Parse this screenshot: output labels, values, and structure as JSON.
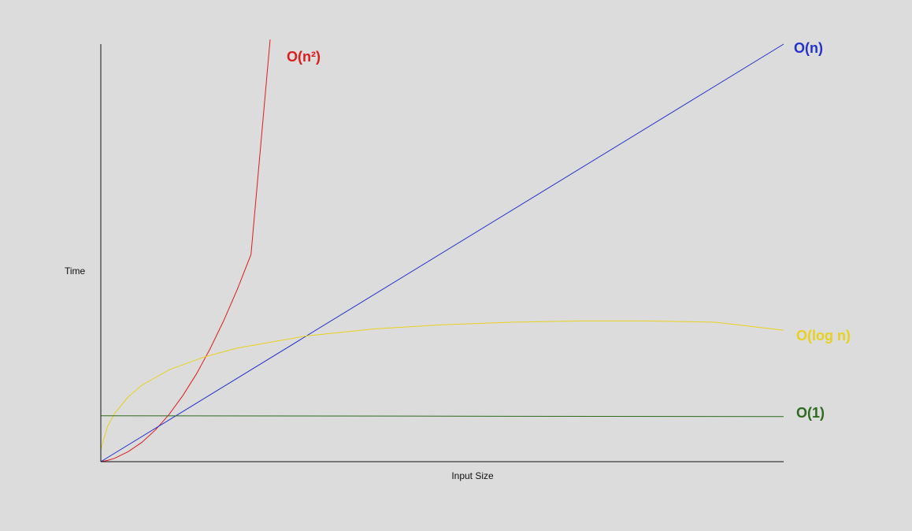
{
  "chart_data": {
    "type": "line",
    "title": "",
    "xlabel": "Input Size",
    "ylabel": "Time",
    "xlim": [
      0,
      100
    ],
    "ylim": [
      0,
      100
    ],
    "grid": false,
    "legend": "none",
    "series": [
      {
        "name": "O(n²)",
        "color": "#dd1c1c",
        "x": [
          0,
          1,
          2,
          4,
          6,
          8,
          10,
          12,
          14,
          16,
          18,
          20,
          22,
          24.8
        ],
        "y": [
          0,
          0.3,
          0.8,
          2.4,
          4.6,
          7.6,
          11.3,
          15.8,
          21.0,
          27.0,
          33.8,
          41.3,
          49.6,
          101.1
        ]
      },
      {
        "name": "O(n)",
        "color": "#2330d0",
        "x": [
          0,
          100
        ],
        "y": [
          0,
          100
        ]
      },
      {
        "name": "O(log n)",
        "color": "#e8d11e",
        "x": [
          0,
          1,
          2,
          4,
          6,
          10,
          15,
          20,
          30,
          40,
          50,
          60,
          70,
          80,
          90,
          100
        ],
        "y": [
          3,
          8.5,
          11.5,
          15.5,
          18.3,
          22.0,
          25.0,
          27.2,
          30.1,
          31.8,
          32.8,
          33.4,
          33.7,
          33.7,
          33.4,
          31.5
        ]
      },
      {
        "name": "O(1)",
        "color": "#2d6a1e",
        "x": [
          0,
          100
        ],
        "y": [
          11,
          10.8
        ]
      }
    ]
  }
}
